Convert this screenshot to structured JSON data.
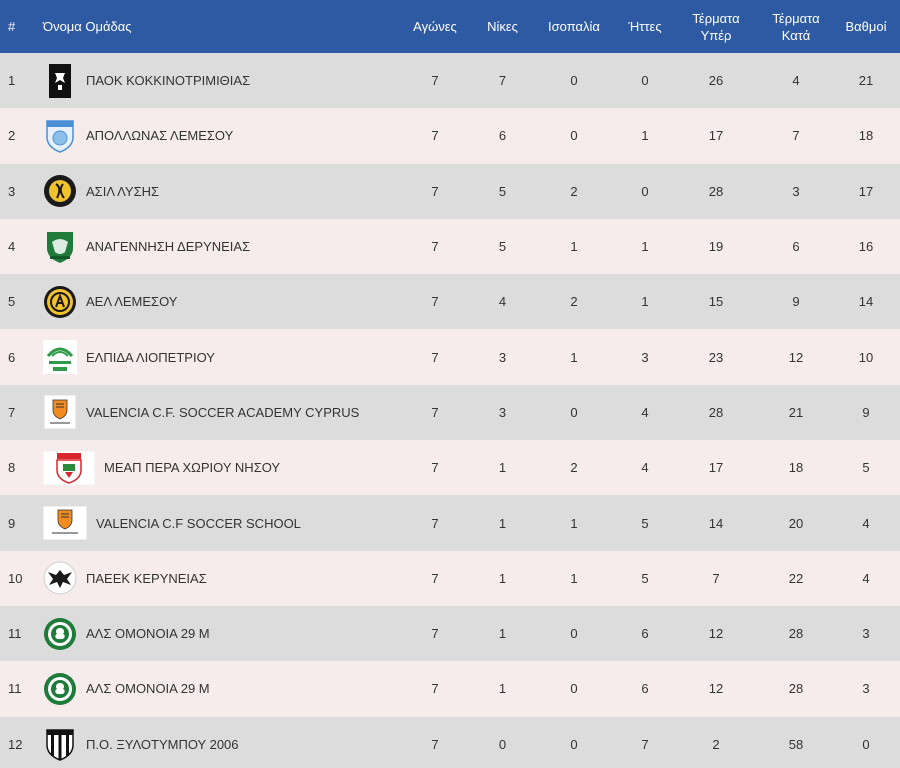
{
  "headers": {
    "rank": "#",
    "team": "Όνομα Ομάδας",
    "played": "Αγώνες",
    "wins": "Νίκες",
    "draws": "Ισοπαλία",
    "losses": "Ήττες",
    "gf_line1": "Τέρματα",
    "gf_line2": "Υπέρ",
    "ga_line1": "Τέρματα",
    "ga_line2": "Κατά",
    "points": "Βαθμοί"
  },
  "rows": [
    {
      "rank": "1",
      "team": "ΠΑΟΚ ΚΟΚΚΙΝΟΤΡΙΜΙΘΙΑΣ",
      "logo": "paok-crest-icon",
      "played": "7",
      "wins": "7",
      "draws": "0",
      "losses": "0",
      "gf": "26",
      "ga": "4",
      "points": "21"
    },
    {
      "rank": "2",
      "team": "ΑΠΟΛΛΩΝΑΣ ΛΕΜΕΣΟΥ",
      "logo": "apollon-crest-icon",
      "played": "7",
      "wins": "6",
      "draws": "0",
      "losses": "1",
      "gf": "17",
      "ga": "7",
      "points": "18"
    },
    {
      "rank": "3",
      "team": "ΑΣΙΛ ΛΥΣΗΣ",
      "logo": "asil-crest-icon",
      "played": "7",
      "wins": "5",
      "draws": "2",
      "losses": "0",
      "gf": "28",
      "ga": "3",
      "points": "17"
    },
    {
      "rank": "4",
      "team": "ΑΝΑΓΕΝΝΗΣΗ ΔΕΡΥΝΕΙΑΣ",
      "logo": "anagennisi-crest-icon",
      "played": "7",
      "wins": "5",
      "draws": "1",
      "losses": "1",
      "gf": "19",
      "ga": "6",
      "points": "16"
    },
    {
      "rank": "5",
      "team": "ΑΕΛ ΛΕΜΕΣΟΥ",
      "logo": "ael-crest-icon",
      "played": "7",
      "wins": "4",
      "draws": "2",
      "losses": "1",
      "gf": "15",
      "ga": "9",
      "points": "14"
    },
    {
      "rank": "6",
      "team": "ΕΛΠΙΔΑ ΛΙΟΠΕΤΡΙΟΥ",
      "logo": "elpida-crest-icon",
      "played": "7",
      "wins": "3",
      "draws": "1",
      "losses": "3",
      "gf": "23",
      "ga": "12",
      "points": "10"
    },
    {
      "rank": "7",
      "team": "VALENCIA C.F. SOCCER ACADEMY CYPRUS",
      "logo": "valencia-crest-icon",
      "played": "7",
      "wins": "3",
      "draws": "0",
      "losses": "4",
      "gf": "28",
      "ga": "21",
      "points": "9"
    },
    {
      "rank": "8",
      "team": "ΜΕΑΠ ΠΕΡΑ ΧΩΡΙΟΥ ΝΗΣΟΥ",
      "logo": "meap-crest-icon",
      "played": "7",
      "wins": "1",
      "draws": "2",
      "losses": "4",
      "gf": "17",
      "ga": "18",
      "points": "5"
    },
    {
      "rank": "9",
      "team": "VALENCIA C.F SOCCER SCHOOL",
      "logo": "valencia-school-crest-icon",
      "played": "7",
      "wins": "1",
      "draws": "1",
      "losses": "5",
      "gf": "14",
      "ga": "20",
      "points": "4"
    },
    {
      "rank": "10",
      "team": "ΠΑΕΕΚ ΚΕΡΥΝΕΙΑΣ",
      "logo": "paeek-crest-icon",
      "played": "7",
      "wins": "1",
      "draws": "1",
      "losses": "5",
      "gf": "7",
      "ga": "22",
      "points": "4"
    },
    {
      "rank": "11",
      "team": "ΑΛΣ ΟΜΟΝΟΙΑ 29 Μ",
      "logo": "omonoia-crest-icon",
      "played": "7",
      "wins": "1",
      "draws": "0",
      "losses": "6",
      "gf": "12",
      "ga": "28",
      "points": "3"
    },
    {
      "rank": "11",
      "team": "ΑΛΣ ΟΜΟΝΟΙΑ 29 Μ",
      "logo": "omonoia-crest-icon",
      "played": "7",
      "wins": "1",
      "draws": "0",
      "losses": "6",
      "gf": "12",
      "ga": "28",
      "points": "3"
    },
    {
      "rank": "12",
      "team": "Π.Ο. ΞΥΛΟΤΥΜΠΟΥ 2006",
      "logo": "xylotymbou-crest-icon",
      "played": "7",
      "wins": "0",
      "draws": "0",
      "losses": "7",
      "gf": "2",
      "ga": "58",
      "points": "0"
    }
  ],
  "colors": {
    "header_bg": "#2e5aa3",
    "row_odd": "#dcdcdc",
    "row_even": "#f7ecec"
  }
}
